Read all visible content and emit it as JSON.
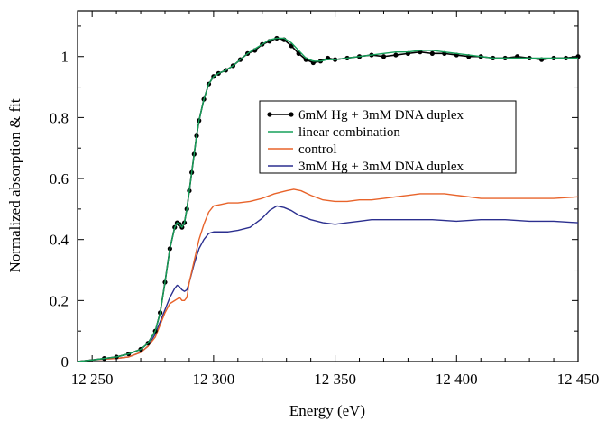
{
  "chart_data": {
    "type": "line",
    "title": "",
    "xlabel": "Energy (eV)",
    "ylabel": "Normalized absorption & fit",
    "xlim": [
      12244,
      12450
    ],
    "ylim": [
      0,
      1.15
    ],
    "x_ticks": [
      12250,
      12300,
      12350,
      12400,
      12450
    ],
    "x_tick_labels": [
      "12 250",
      "12 300",
      "12 350",
      "12 400",
      "12 450"
    ],
    "y_ticks": [
      0,
      0.2,
      0.4,
      0.6,
      0.8,
      1.0
    ],
    "y_tick_labels": [
      "0",
      "0.2",
      "0.4",
      "0.6",
      "0.8",
      "1"
    ],
    "grid": false,
    "legend_position": "upper-right-inside",
    "series": [
      {
        "name": "6mM Hg + 3mM DNA duplex",
        "color": "#000000",
        "style": "line-with-markers",
        "x": [
          12244,
          12250,
          12255,
          12260,
          12265,
          12270,
          12273,
          12276,
          12278,
          12280,
          12282,
          12284,
          12285,
          12286,
          12287,
          12288,
          12289,
          12290,
          12291,
          12292,
          12293,
          12294,
          12296,
          12298,
          12300,
          12302,
          12305,
          12308,
          12311,
          12314,
          12317,
          12320,
          12323,
          12326,
          12329,
          12332,
          12335,
          12338,
          12341,
          12344,
          12347,
          12350,
          12355,
          12360,
          12365,
          12370,
          12375,
          12380,
          12385,
          12390,
          12395,
          12400,
          12405,
          12410,
          12415,
          12420,
          12425,
          12430,
          12435,
          12440,
          12445,
          12450
        ],
        "y": [
          0.0,
          0.005,
          0.01,
          0.015,
          0.025,
          0.04,
          0.06,
          0.1,
          0.16,
          0.26,
          0.37,
          0.44,
          0.455,
          0.45,
          0.44,
          0.455,
          0.5,
          0.56,
          0.62,
          0.68,
          0.74,
          0.79,
          0.86,
          0.91,
          0.935,
          0.945,
          0.955,
          0.97,
          0.99,
          1.01,
          1.02,
          1.04,
          1.05,
          1.06,
          1.055,
          1.035,
          1.01,
          0.99,
          0.98,
          0.985,
          0.995,
          0.99,
          0.995,
          1.0,
          1.005,
          1.0,
          1.005,
          1.01,
          1.015,
          1.01,
          1.01,
          1.005,
          1.0,
          1.0,
          0.995,
          0.995,
          1.0,
          0.995,
          0.99,
          0.995,
          0.995,
          1.0
        ]
      },
      {
        "name": "linear combination",
        "color": "#16a05a",
        "style": "line",
        "x": [
          12244,
          12250,
          12255,
          12260,
          12265,
          12270,
          12273,
          12276,
          12278,
          12280,
          12282,
          12284,
          12285,
          12286,
          12287,
          12288,
          12289,
          12290,
          12291,
          12292,
          12293,
          12294,
          12296,
          12298,
          12300,
          12302,
          12305,
          12308,
          12311,
          12314,
          12317,
          12320,
          12323,
          12326,
          12329,
          12332,
          12335,
          12338,
          12341,
          12344,
          12347,
          12350,
          12355,
          12360,
          12365,
          12370,
          12375,
          12380,
          12385,
          12390,
          12395,
          12400,
          12405,
          12410,
          12415,
          12420,
          12425,
          12430,
          12435,
          12440,
          12445,
          12450
        ],
        "y": [
          0.0,
          0.005,
          0.01,
          0.015,
          0.025,
          0.04,
          0.06,
          0.1,
          0.16,
          0.26,
          0.37,
          0.44,
          0.455,
          0.45,
          0.44,
          0.455,
          0.5,
          0.56,
          0.62,
          0.68,
          0.74,
          0.79,
          0.86,
          0.91,
          0.935,
          0.945,
          0.955,
          0.97,
          0.99,
          1.01,
          1.025,
          1.04,
          1.055,
          1.06,
          1.06,
          1.045,
          1.02,
          0.995,
          0.985,
          0.985,
          0.99,
          0.99,
          0.995,
          1.0,
          1.005,
          1.01,
          1.015,
          1.015,
          1.02,
          1.02,
          1.015,
          1.01,
          1.005,
          1.0,
          0.995,
          0.995,
          0.995,
          0.995,
          0.995,
          0.995,
          0.995,
          0.995
        ]
      },
      {
        "name": "control",
        "color": "#e8632a",
        "style": "line",
        "x": [
          12244,
          12250,
          12255,
          12260,
          12265,
          12270,
          12273,
          12276,
          12278,
          12280,
          12282,
          12284,
          12285,
          12286,
          12287,
          12288,
          12289,
          12290,
          12292,
          12294,
          12296,
          12298,
          12300,
          12303,
          12306,
          12310,
          12315,
          12320,
          12325,
          12330,
          12333,
          12336,
          12340,
          12345,
          12350,
          12355,
          12360,
          12365,
          12370,
          12375,
          12380,
          12385,
          12390,
          12395,
          12400,
          12405,
          12410,
          12420,
          12430,
          12440,
          12450
        ],
        "y": [
          0.0,
          0.005,
          0.008,
          0.01,
          0.015,
          0.03,
          0.05,
          0.08,
          0.12,
          0.16,
          0.19,
          0.2,
          0.205,
          0.21,
          0.2,
          0.2,
          0.21,
          0.26,
          0.33,
          0.4,
          0.45,
          0.49,
          0.51,
          0.515,
          0.52,
          0.52,
          0.525,
          0.535,
          0.55,
          0.56,
          0.565,
          0.56,
          0.545,
          0.53,
          0.525,
          0.525,
          0.53,
          0.53,
          0.535,
          0.54,
          0.545,
          0.55,
          0.55,
          0.55,
          0.545,
          0.54,
          0.535,
          0.535,
          0.535,
          0.535,
          0.54
        ]
      },
      {
        "name": "3mM Hg + 3mM DNA duplex",
        "color": "#2b2f8f",
        "style": "line",
        "x": [
          12244,
          12250,
          12255,
          12260,
          12265,
          12270,
          12273,
          12276,
          12278,
          12280,
          12282,
          12284,
          12285,
          12286,
          12287,
          12288,
          12289,
          12290,
          12292,
          12294,
          12296,
          12298,
          12300,
          12303,
          12306,
          12310,
          12315,
          12320,
          12323,
          12326,
          12329,
          12332,
          12335,
          12340,
          12345,
          12350,
          12355,
          12360,
          12365,
          12370,
          12380,
          12390,
          12400,
          12410,
          12420,
          12430,
          12440,
          12450
        ],
        "y": [
          0.0,
          0.005,
          0.008,
          0.01,
          0.015,
          0.03,
          0.05,
          0.09,
          0.13,
          0.17,
          0.21,
          0.24,
          0.25,
          0.245,
          0.235,
          0.23,
          0.235,
          0.26,
          0.32,
          0.37,
          0.4,
          0.42,
          0.425,
          0.425,
          0.425,
          0.43,
          0.44,
          0.47,
          0.495,
          0.51,
          0.505,
          0.495,
          0.48,
          0.465,
          0.455,
          0.45,
          0.455,
          0.46,
          0.465,
          0.465,
          0.465,
          0.465,
          0.46,
          0.465,
          0.465,
          0.46,
          0.46,
          0.455
        ]
      }
    ]
  }
}
